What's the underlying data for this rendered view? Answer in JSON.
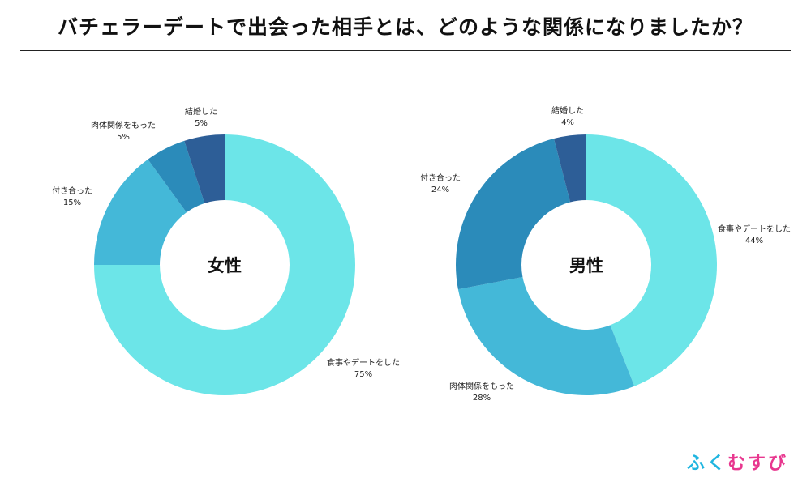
{
  "title": "バチェラーデートで出会った相手とは、どのような関係になりましたか？",
  "brand": {
    "chars": [
      "ふ",
      "く",
      "む",
      "す",
      "び"
    ],
    "colors": [
      "#1fb5e0",
      "#1fb5e0",
      "#e8378f",
      "#e8378f",
      "#e8378f"
    ]
  },
  "chart_data": [
    {
      "type": "pie",
      "donut": true,
      "center_label": "女性",
      "slices": [
        {
          "label": "食事やデートをした",
          "value": 75,
          "value_label": "75%",
          "color": "#6ce5e8"
        },
        {
          "label": "付き合った",
          "value": 15,
          "value_label": "15%",
          "color": "#44b8d8"
        },
        {
          "label": "肉体関係をもった",
          "value": 5,
          "value_label": "5%",
          "color": "#2b8bba"
        },
        {
          "label": "結婚した",
          "value": 5,
          "value_label": "5%",
          "color": "#2d5e97"
        }
      ]
    },
    {
      "type": "pie",
      "donut": true,
      "center_label": "男性",
      "slices": [
        {
          "label": "食事やデートをした",
          "value": 44,
          "value_label": "44%",
          "color": "#6ce5e8"
        },
        {
          "label": "肉体関係をもった",
          "value": 28,
          "value_label": "28%",
          "color": "#44b8d8"
        },
        {
          "label": "付き合った",
          "value": 24,
          "value_label": "24%",
          "color": "#2b8bba"
        },
        {
          "label": "結婚した",
          "value": 4,
          "value_label": "4%",
          "color": "#2d5e97"
        }
      ]
    }
  ]
}
